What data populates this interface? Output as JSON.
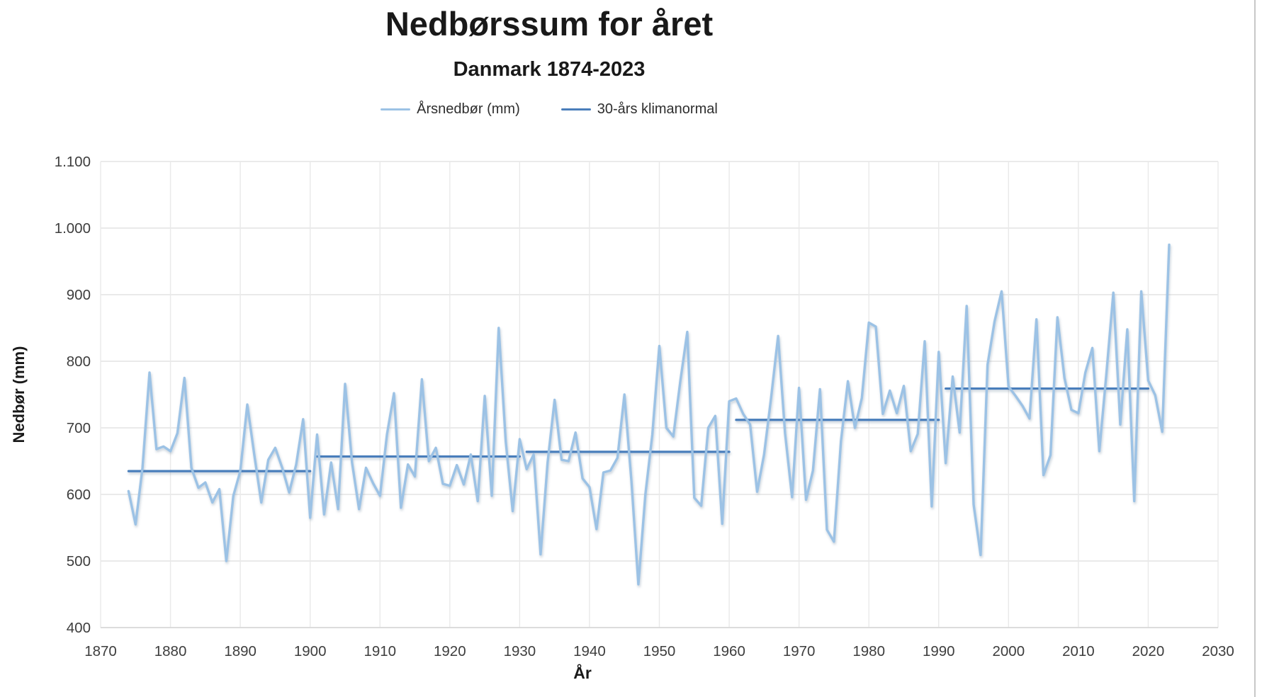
{
  "header": {
    "title": "Nedbørssum for året",
    "subtitle": "Danmark 1874-2023"
  },
  "legend": [
    {
      "label": "Årsnedbør (mm)",
      "color": "#9CC2E5"
    },
    {
      "label": "30-års klimanormal",
      "color": "#4A7EBB"
    }
  ],
  "axes": {
    "y": {
      "title": "Nedbør (mm)",
      "ticks": [
        1100,
        1000,
        900,
        800,
        700,
        600,
        500,
        400
      ],
      "tick_labels": [
        "1.100",
        "1.000",
        "900",
        "800",
        "700",
        "600",
        "500",
        "400"
      ]
    },
    "x": {
      "title": "År",
      "ticks": [
        1870,
        1880,
        1890,
        1900,
        1910,
        1920,
        1930,
        1940,
        1950,
        1960,
        1970,
        1980,
        1990,
        2000,
        2010,
        2020,
        2030
      ]
    }
  },
  "chart_data": {
    "type": "line",
    "title": "Nedbørssum for året",
    "subtitle": "Danmark 1874-2023",
    "xlabel": "År",
    "ylabel": "Nedbør (mm)",
    "xlim": [
      1870,
      2030
    ],
    "ylim": [
      400,
      1100
    ],
    "grid": true,
    "legend_position": "top",
    "series": [
      {
        "name": "Årsnedbør (mm)",
        "color": "#9CC2E5",
        "x_start": 1874,
        "x_end": 2023,
        "values": [
          605,
          555,
          640,
          783,
          668,
          672,
          665,
          692,
          775,
          640,
          610,
          618,
          588,
          608,
          500,
          598,
          635,
          735,
          660,
          588,
          652,
          670,
          640,
          603,
          645,
          713,
          565,
          690,
          570,
          648,
          578,
          766,
          648,
          578,
          640,
          617,
          598,
          690,
          752,
          580,
          645,
          627,
          773,
          650,
          670,
          616,
          613,
          644,
          615,
          660,
          590,
          748,
          598,
          850,
          680,
          575,
          683,
          638,
          660,
          510,
          648,
          742,
          652,
          650,
          693,
          624,
          611,
          548,
          633,
          636,
          655,
          750,
          620,
          465,
          600,
          690,
          823,
          700,
          687,
          770,
          844,
          595,
          583,
          700,
          718,
          556,
          740,
          744,
          721,
          705,
          604,
          660,
          745,
          838,
          692,
          596,
          760,
          592,
          636,
          758,
          547,
          529,
          680,
          770,
          700,
          745,
          858,
          852,
          721,
          756,
          722,
          763,
          665,
          691,
          830,
          582,
          814,
          647,
          777,
          693,
          883,
          585,
          509,
          795,
          860,
          905,
          762,
          748,
          733,
          714,
          863,
          629,
          659,
          866,
          775,
          727,
          722,
          783,
          820,
          665,
          780,
          903,
          705,
          848,
          590,
          905,
          771,
          749,
          694,
          975
        ]
      },
      {
        "name": "30-års klimanormal",
        "color": "#4A7EBB",
        "segments": [
          {
            "from": 1874,
            "to": 1900,
            "value": 635
          },
          {
            "from": 1901,
            "to": 1930,
            "value": 657
          },
          {
            "from": 1931,
            "to": 1960,
            "value": 664
          },
          {
            "from": 1961,
            "to": 1990,
            "value": 712
          },
          {
            "from": 1991,
            "to": 2020,
            "value": 759
          }
        ]
      }
    ]
  }
}
